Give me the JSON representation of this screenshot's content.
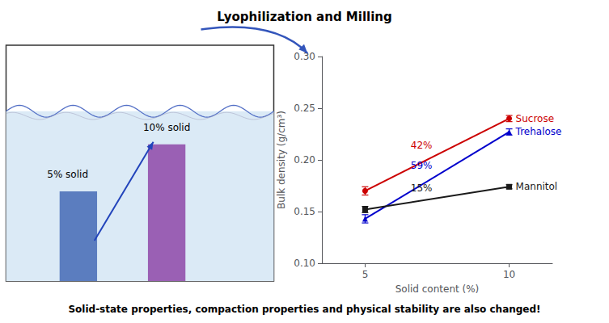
{
  "chart_data": {
    "type": "line",
    "title": "Lyophilization and Milling",
    "subtitle": "Solid-state properties, compaction properties and physical stability are also changed!",
    "annotations": [
      "5% solid",
      "10% solid"
    ],
    "xlabel": "Solid content (%)",
    "ylabel": "Bulk density (g/cm³)",
    "x": [
      5,
      10
    ],
    "xlim": [
      3.5,
      11.5
    ],
    "xticks": [
      5,
      10
    ],
    "ylim": [
      0.1,
      0.3
    ],
    "yticks": [
      {
        "value": 0.1,
        "label": "0.10"
      },
      0.15,
      {
        "value": 0.2,
        "label": "0.20"
      },
      0.25,
      {
        "value": 0.3,
        "label": "0.30"
      }
    ],
    "grid": false,
    "series": [
      {
        "name": "Sucrose",
        "color": "#cc0000",
        "marker": "circle",
        "values": [
          0.17,
          0.24
        ],
        "yerr": [
          0.004,
          0.003
        ],
        "annotation": "42%"
      },
      {
        "name": "Trehalose",
        "color": "#0000cc",
        "marker": "triangle",
        "values": [
          0.143,
          0.227
        ],
        "yerr": [
          0.004,
          0.003
        ],
        "annotation": "59%"
      },
      {
        "name": "Mannitol",
        "color": "#1a1a1a",
        "marker": "square",
        "values": [
          0.152,
          0.174
        ],
        "yerr": [
          0.003,
          0.002
        ],
        "annotation": "15%"
      }
    ]
  }
}
